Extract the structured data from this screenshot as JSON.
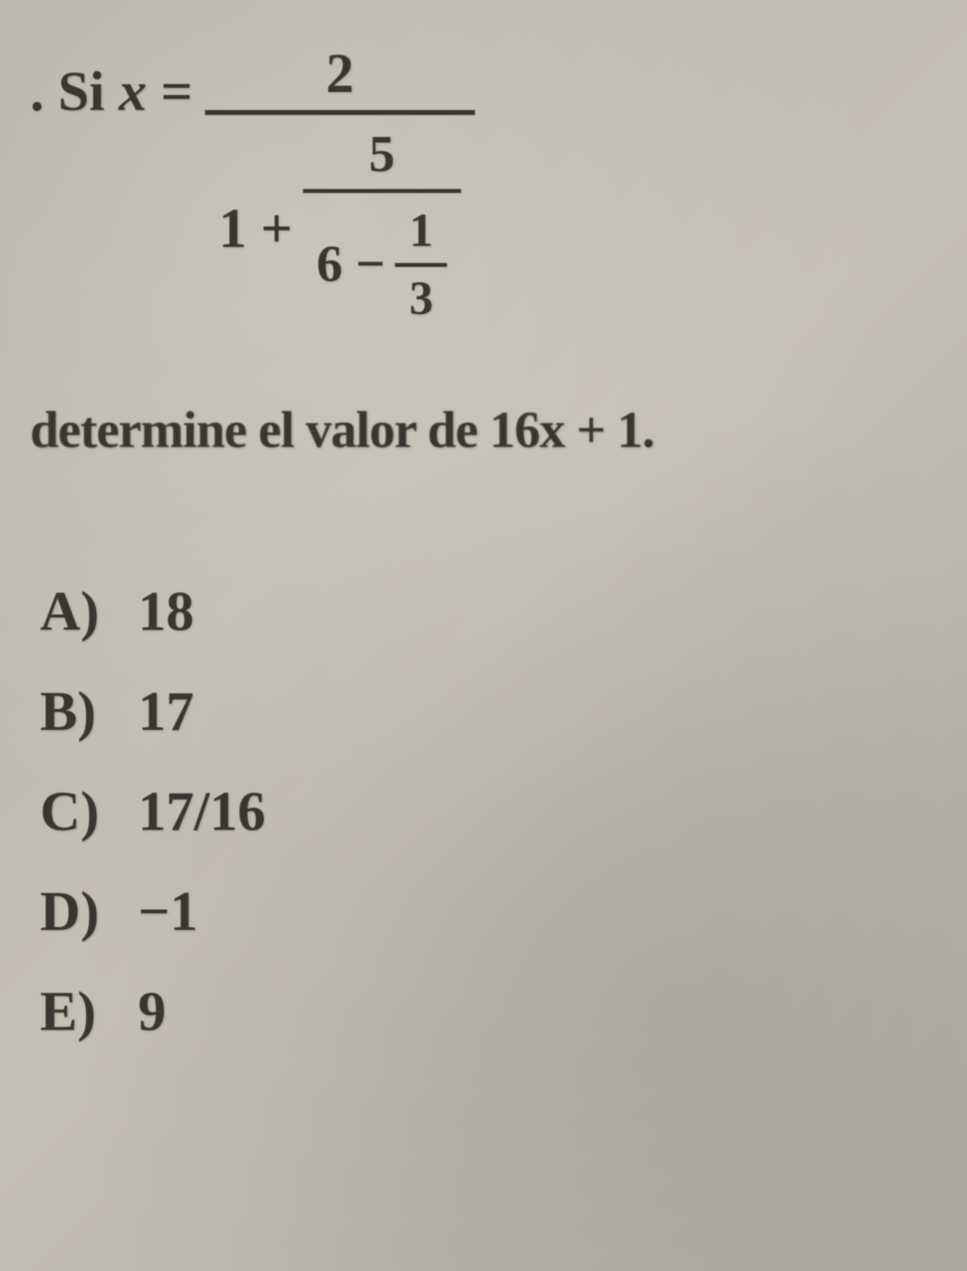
{
  "problem": {
    "prefix": ". Si",
    "variable": "x",
    "equals": "=",
    "frac": {
      "num": "2",
      "den_left": "1 +",
      "inner": {
        "num": "5",
        "den_left": "6 −",
        "innermost": {
          "num": "1",
          "den": "3"
        }
      }
    }
  },
  "determine": "determine el valor de 16x + 1.",
  "options": [
    {
      "label": "A)",
      "value": "18"
    },
    {
      "label": "B)",
      "value": "17"
    },
    {
      "label": "C)",
      "value": "17/16"
    },
    {
      "label": "D)",
      "value": "−1"
    },
    {
      "label": "E)",
      "value": "9"
    }
  ]
}
